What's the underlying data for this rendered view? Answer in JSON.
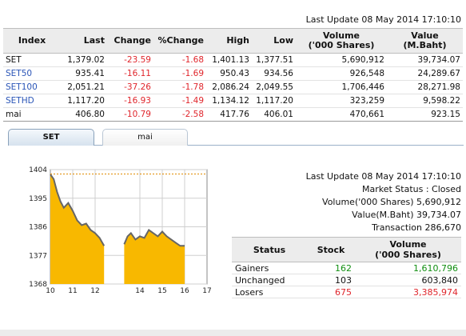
{
  "top": {
    "last_update": "Last Update 08 May 2014 17:10:10"
  },
  "index_table": {
    "headers": [
      "Index",
      "Last",
      "Change",
      "%Change",
      "High",
      "Low",
      "Volume\n('000 Shares)",
      "Value\n(M.Baht)"
    ],
    "rows": [
      {
        "name": "SET",
        "last": "1,379.02",
        "change": "-23.59",
        "pct": "-1.68",
        "high": "1,401.13",
        "low": "1,377.51",
        "volume": "5,690,912",
        "value": "39,734.07"
      },
      {
        "name": "SET50",
        "last": "935.41",
        "change": "-16.11",
        "pct": "-1.69",
        "high": "950.43",
        "low": "934.56",
        "volume": "926,548",
        "value": "24,289.67"
      },
      {
        "name": "SET100",
        "last": "2,051.21",
        "change": "-37.26",
        "pct": "-1.78",
        "high": "2,086.24",
        "low": "2,049.55",
        "volume": "1,706,446",
        "value": "28,271.98"
      },
      {
        "name": "SETHD",
        "last": "1,117.20",
        "change": "-16.93",
        "pct": "-1.49",
        "high": "1,134.12",
        "low": "1,117.20",
        "volume": "323,259",
        "value": "9,598.22"
      },
      {
        "name": "mai",
        "last": "406.80",
        "change": "-10.79",
        "pct": "-2.58",
        "high": "417.76",
        "low": "406.01",
        "volume": "470,661",
        "value": "923.15"
      }
    ]
  },
  "tabs": [
    "SET",
    "mai"
  ],
  "chart_data": {
    "type": "area",
    "y_ticks": [
      "1404",
      "1395",
      "1386",
      "1377",
      "1368"
    ],
    "x_ticks": [
      "10",
      "11",
      "12",
      "14",
      "15",
      "16",
      "17"
    ],
    "ylim": [
      1368,
      1404
    ],
    "xlim": [
      10,
      17
    ],
    "reference_line": 1402.6,
    "series": [
      {
        "values": [
          [
            10,
            1402.5
          ],
          [
            10.15,
            1401
          ],
          [
            10.3,
            1397
          ],
          [
            10.45,
            1394
          ],
          [
            10.6,
            1392
          ],
          [
            10.8,
            1393.5
          ],
          [
            11,
            1391
          ],
          [
            11.2,
            1388
          ],
          [
            11.4,
            1386.5
          ],
          [
            11.6,
            1387
          ],
          [
            11.8,
            1385
          ],
          [
            12,
            1384
          ],
          [
            12.2,
            1382.5
          ],
          [
            12.4,
            1380
          ]
        ]
      },
      {
        "values": [
          [
            13.3,
            1380.5
          ],
          [
            13.45,
            1383
          ],
          [
            13.6,
            1384
          ],
          [
            13.8,
            1382
          ],
          [
            14,
            1383
          ],
          [
            14.2,
            1382.5
          ],
          [
            14.4,
            1385
          ],
          [
            14.6,
            1384
          ],
          [
            14.8,
            1383
          ],
          [
            15,
            1384.5
          ],
          [
            15.2,
            1383
          ],
          [
            15.4,
            1382
          ],
          [
            15.6,
            1381
          ],
          [
            15.8,
            1380
          ],
          [
            16,
            1380
          ]
        ]
      }
    ]
  },
  "market_info": {
    "last_update": "Last Update 08 May 2014 17:10:10",
    "market_status": "Market Status : Closed",
    "volume": "Volume('000 Shares) 5,690,912",
    "value": "Value(M.Baht) 39,734.07",
    "transaction": "Transaction 286,670"
  },
  "status_table": {
    "headers": [
      "Status",
      "Stock",
      "Volume\n('000 Shares)"
    ],
    "rows": [
      {
        "status": "Gainers",
        "stock": "162",
        "volume": "1,610,796"
      },
      {
        "status": "Unchanged",
        "stock": "103",
        "volume": "603,840"
      },
      {
        "status": "Losers",
        "stock": "675",
        "volume": "3,385,974"
      }
    ]
  },
  "colors": {
    "negative": "#e0262c",
    "positive": "#128f12",
    "link": "#2a55b7",
    "area_fill": "#f8b800",
    "area_line": "#666666"
  }
}
